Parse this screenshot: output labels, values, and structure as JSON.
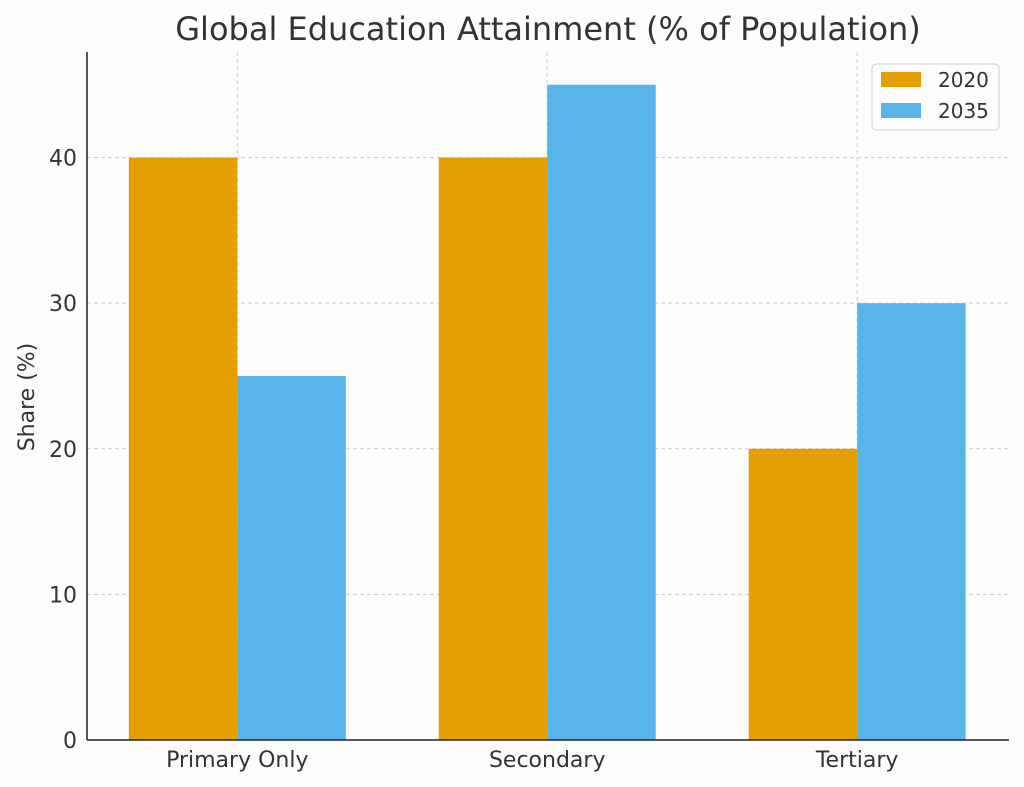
{
  "chart_data": {
    "type": "bar",
    "title": "Global Education Attainment (% of Population)",
    "xlabel": "",
    "ylabel": "Share (%)",
    "categories": [
      "Primary Only",
      "Secondary",
      "Tertiary"
    ],
    "series": [
      {
        "name": "2020",
        "values": [
          40,
          40,
          20
        ],
        "color": "#E69F00"
      },
      {
        "name": "2035",
        "values": [
          25,
          45,
          30
        ],
        "color": "#56B4E9"
      }
    ],
    "yticks": [
      0,
      10,
      20,
      30,
      40
    ],
    "ylim": [
      0,
      47.25
    ],
    "grid": true,
    "legend": "top-right"
  }
}
